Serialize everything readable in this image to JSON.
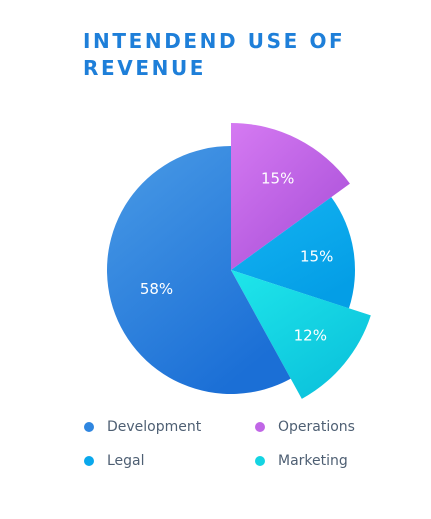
{
  "header": {
    "title": "INTENDEND USE OF\nREVENUE"
  },
  "colors": {
    "title": "#1e7fd9",
    "development": "#2f86e0",
    "operations": "#c066e6",
    "legal": "#0aa8ec",
    "marketing": "#14d4e2"
  },
  "chart_data": {
    "type": "pie",
    "title": "INTENDEND USE OF REVENUE",
    "legend_position": "bottom",
    "slices": [
      {
        "name": "Operations",
        "value": 15,
        "label": "15%",
        "color": "#c066e6",
        "exploded": true
      },
      {
        "name": "Legal",
        "value": 15,
        "label": "15%",
        "color": "#0aa8ec",
        "exploded": false
      },
      {
        "name": "Marketing",
        "value": 12,
        "label": "12%",
        "color": "#14d4e2",
        "exploded": true
      },
      {
        "name": "Development",
        "value": 58,
        "label": "58%",
        "color": "#2f86e0",
        "exploded": false
      }
    ]
  },
  "legend": {
    "items": [
      {
        "label": "Development",
        "color": "#2f86e0"
      },
      {
        "label": "Operations",
        "color": "#c066e6"
      },
      {
        "label": "Legal",
        "color": "#0aa8ec"
      },
      {
        "label": "Marketing",
        "color": "#14d4e2"
      }
    ]
  }
}
